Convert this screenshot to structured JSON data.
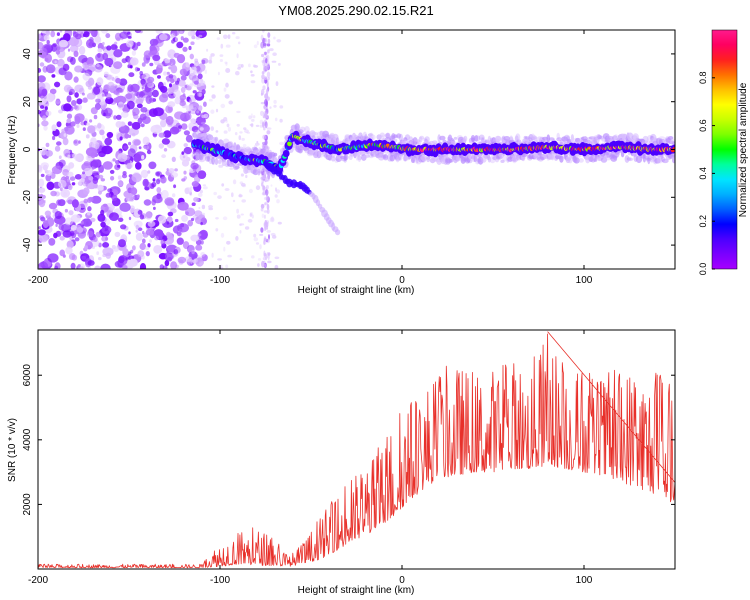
{
  "figure": {
    "title": "YM08.2025.290.02.15.R21"
  },
  "colors": {
    "trace": "#e8302a",
    "axis": "#000000",
    "background": "#ffffff"
  },
  "colormap": [
    "#a600ff",
    "#7a00ff",
    "#4b00ff",
    "#0000ff",
    "#0060ff",
    "#00b0ff",
    "#00e5ff",
    "#00ff9c",
    "#00ff00",
    "#7dff00",
    "#c8ff00",
    "#ffff00",
    "#ffc000",
    "#ff7000",
    "#ff2020",
    "#ff0060",
    "#ff1a8c"
  ],
  "chart_data": [
    {
      "type": "heatmap",
      "name": "spectrogram",
      "xlabel": "Height of straight line (km)",
      "ylabel": "Frequency (Hz)",
      "xlim": [
        -200,
        150
      ],
      "ylim": [
        -50,
        50
      ],
      "xticks": [
        -200,
        -100,
        0,
        100
      ],
      "yticks": [
        -40,
        -20,
        0,
        20,
        40
      ],
      "colorbar": {
        "label": "Normalized spectral amplitude",
        "range": [
          0,
          1
        ],
        "ticks": [
          "0.0",
          "0.2",
          "0.4",
          "0.6",
          "0.8"
        ]
      },
      "ridge": {
        "description": "dominant spectral peak near 0 Hz",
        "x": [
          -114,
          -105,
          -95,
          -85,
          -75,
          -67,
          -60,
          -55,
          -45,
          -35,
          -25,
          -15,
          -5,
          5,
          20,
          40,
          60,
          80,
          100,
          120,
          140,
          150
        ],
        "y": [
          2,
          0,
          -2,
          -4,
          -5,
          -8,
          6,
          4,
          2,
          0,
          1,
          2,
          1,
          0,
          0,
          0,
          0,
          1,
          0,
          1,
          0,
          0
        ]
      },
      "secondary_branch": {
        "x": [
          -75,
          -68,
          -62,
          -55,
          -48,
          -40,
          -35
        ],
        "y": [
          -6,
          -10,
          -14,
          -15,
          -20,
          -30,
          -35
        ]
      },
      "noise_region": {
        "x": [
          -200,
          -114
        ],
        "y": [
          -50,
          50
        ]
      },
      "stripe_at_x": -75
    },
    {
      "type": "line",
      "name": "snr",
      "xlabel": "Height of straight line (km)",
      "ylabel": "SNR (10 * v/v)",
      "xlim": [
        -200,
        150
      ],
      "ylim": [
        0,
        7400
      ],
      "xticks": [
        -200,
        -100,
        0,
        100
      ],
      "yticks": [
        2000,
        4000,
        6000
      ],
      "envelope": {
        "x": [
          -200,
          -150,
          -110,
          -105,
          -100,
          -90,
          -80,
          -70,
          -62,
          -55,
          -45,
          -35,
          -25,
          -15,
          -5,
          0,
          10,
          20,
          30,
          40,
          50,
          60,
          70,
          80,
          90,
          100,
          110,
          120,
          130,
          140,
          150
        ],
        "low": [
          40,
          40,
          40,
          60,
          80,
          150,
          120,
          100,
          80,
          150,
          300,
          600,
          900,
          1200,
          1600,
          1900,
          2400,
          2800,
          2900,
          3000,
          3000,
          3100,
          3100,
          3200,
          3100,
          3000,
          2900,
          2700,
          2500,
          2300,
          2000
        ],
        "high": [
          150,
          150,
          150,
          550,
          900,
          1200,
          1300,
          1000,
          400,
          800,
          1600,
          2400,
          3000,
          3600,
          4600,
          5200,
          5600,
          6200,
          6400,
          6100,
          6300,
          6600,
          6400,
          7400,
          6500,
          6200,
          6000,
          6300,
          6500,
          6200,
          5900
        ]
      },
      "peak": {
        "x": 80,
        "y": 7350
      }
    }
  ]
}
